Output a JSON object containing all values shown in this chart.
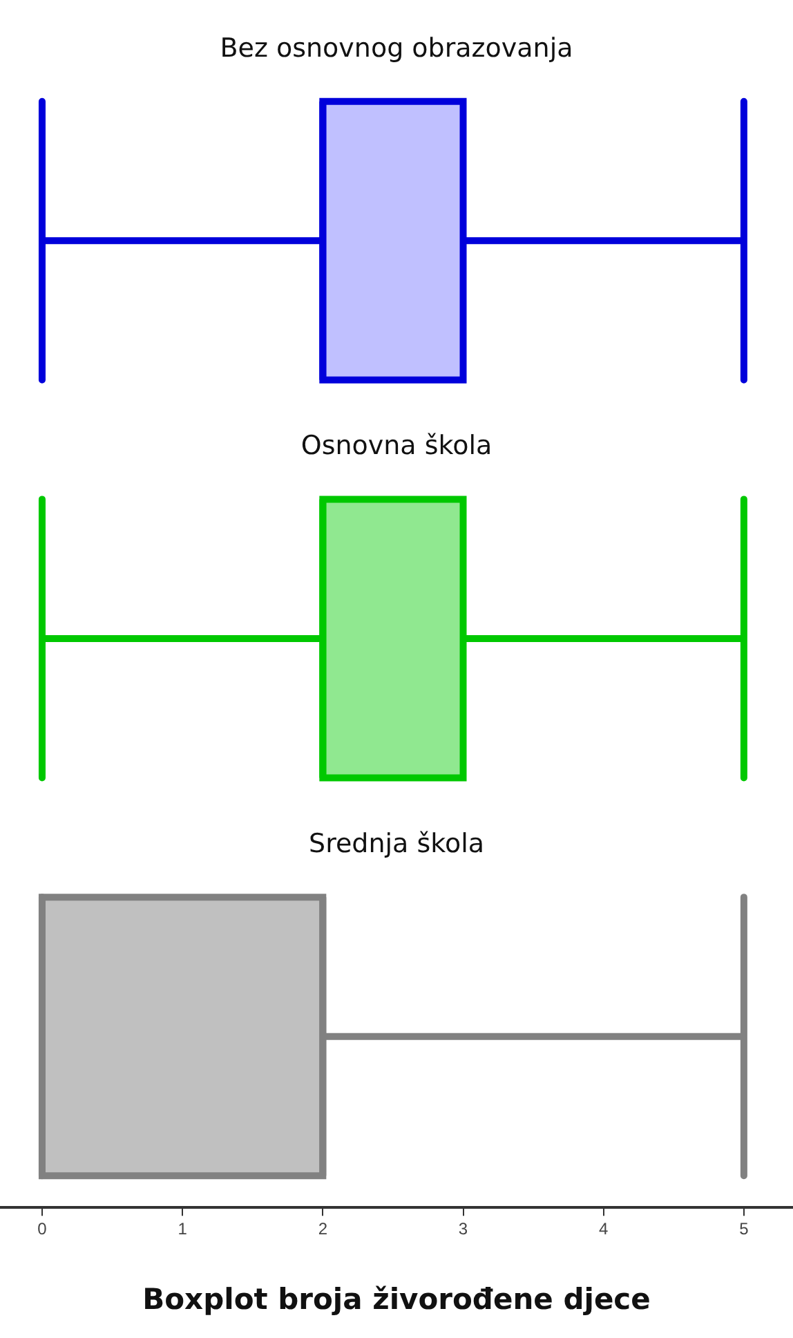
{
  "chart_data": {
    "type": "box",
    "orientation": "horizontal",
    "title": "Boxplot broja živorođene djece",
    "categories": [
      "Bez osnovnog obrazovanja",
      "Osnovna škola",
      "Srednja škola"
    ],
    "boxes": [
      {
        "low": 0,
        "q1": 2,
        "median": 2,
        "q3": 3,
        "high": 5
      },
      {
        "low": 0,
        "q1": 2,
        "median": 2,
        "q3": 3,
        "high": 5
      },
      {
        "low": 0,
        "q1": 0,
        "median": 2,
        "q3": 2,
        "high": 5
      }
    ],
    "colors": [
      "#c0c0ff",
      "#90e890",
      "#c0c0c0"
    ],
    "xlim": [
      -0.3,
      5.35
    ],
    "xticks": [
      0,
      1,
      2,
      3,
      4,
      5
    ],
    "grid": false,
    "legend": false
  }
}
